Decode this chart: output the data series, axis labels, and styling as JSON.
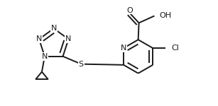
{
  "background": "#ffffff",
  "line_color": "#1a1a1a",
  "line_width": 1.4,
  "font_size": 8.0,
  "fig_width": 3.07,
  "fig_height": 1.5,
  "dpi": 100,
  "xlim": [
    0.0,
    3.07
  ],
  "ylim": [
    0.0,
    1.5
  ]
}
